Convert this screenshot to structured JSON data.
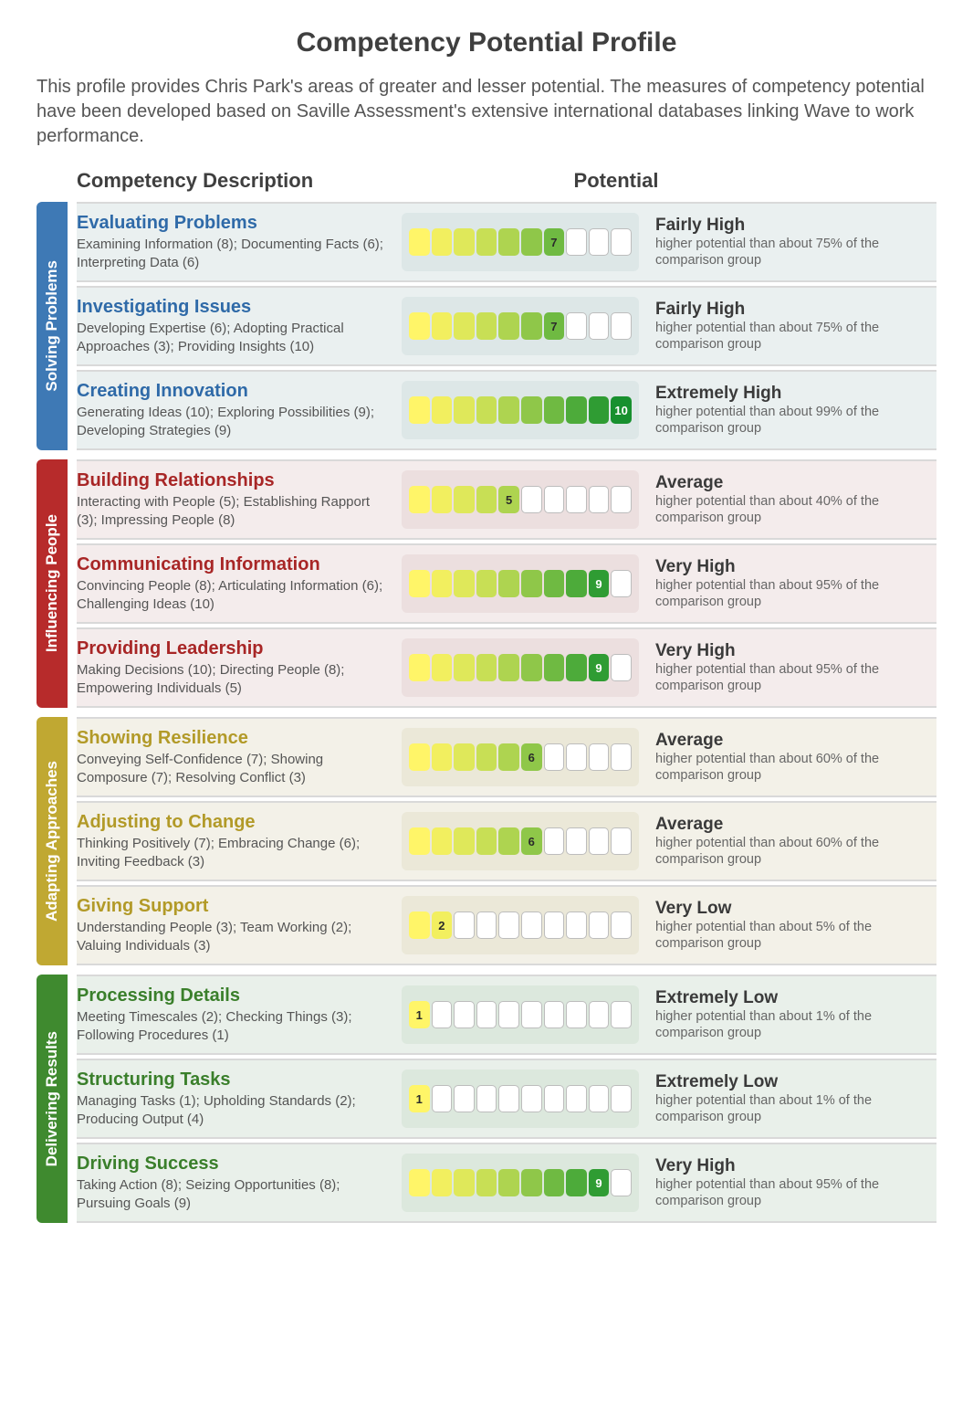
{
  "title": "Competency Potential Profile",
  "intro": "This profile provides Chris Park's areas of greater and lesser potential. The measures of competency potential have been developed based on Saville Assessment's extensive international databases linking Wave to work performance.",
  "headers": {
    "description": "Competency Description",
    "potential": "Potential"
  },
  "bar": {
    "cell_count": 10,
    "gradient": [
      "#fff568",
      "#f2ef5f",
      "#dfe85a",
      "#c8df55",
      "#aed450",
      "#8fc749",
      "#6fba42",
      "#4dab3a",
      "#2f9c33",
      "#17902e"
    ],
    "empty_fill": "#ffffff",
    "cell_border": "#bdbdbd"
  },
  "clusters": [
    {
      "name": "Solving Problems",
      "tab_color": "#3e79b5",
      "title_color": "#2f6aa8",
      "row_bg": "#eaf0f0",
      "bar_bg": "#dde7e7",
      "rows": [
        {
          "title": "Evaluating Problems",
          "sub": "Examining Information (8); Documenting Facts (6); Interpreting Data (6)",
          "score": 7,
          "pot_label": "Fairly High",
          "pot_sub": "higher potential than about 75% of the comparison group"
        },
        {
          "title": "Investigating Issues",
          "sub": "Developing Expertise (6); Adopting Practical Approaches (3); Providing Insights (10)",
          "score": 7,
          "pot_label": "Fairly High",
          "pot_sub": "higher potential than about 75% of the comparison group"
        },
        {
          "title": "Creating Innovation",
          "sub": "Generating Ideas (10); Exploring Possibilities (9); Developing Strategies (9)",
          "score": 10,
          "pot_label": "Extremely High",
          "pot_sub": "higher potential than about 99% of the comparison group"
        }
      ]
    },
    {
      "name": "Influencing People",
      "tab_color": "#b72b2b",
      "title_color": "#a82626",
      "row_bg": "#f4ecec",
      "bar_bg": "#ecdfdf",
      "rows": [
        {
          "title": "Building Relationships",
          "sub": "Interacting with People (5); Establishing Rapport (3); Impressing People (8)",
          "score": 5,
          "pot_label": "Average",
          "pot_sub": "higher potential than about 40% of the comparison group"
        },
        {
          "title": "Communicating Information",
          "sub": "Convincing People (8); Articulating Information (6); Challenging Ideas (10)",
          "score": 9,
          "pot_label": "Very High",
          "pot_sub": "higher potential than about 95% of the comparison group"
        },
        {
          "title": "Providing Leadership",
          "sub": "Making Decisions (10); Directing People (8); Empowering Individuals (5)",
          "score": 9,
          "pot_label": "Very High",
          "pot_sub": "higher potential than about 95% of the comparison group"
        }
      ]
    },
    {
      "name": "Adapting Approaches",
      "tab_color": "#c0a832",
      "title_color": "#b29a28",
      "row_bg": "#f3f1e8",
      "bar_bg": "#ebe8d8",
      "rows": [
        {
          "title": "Showing Resilience",
          "sub": "Conveying Self-Confidence (7); Showing Composure (7); Resolving Conflict (3)",
          "score": 6,
          "pot_label": "Average",
          "pot_sub": "higher potential than about 60% of the comparison group"
        },
        {
          "title": "Adjusting to Change",
          "sub": "Thinking Positively (7); Embracing Change (6); Inviting Feedback (3)",
          "score": 6,
          "pot_label": "Average",
          "pot_sub": "higher potential than about 60% of the comparison group"
        },
        {
          "title": "Giving Support",
          "sub": "Understanding People (3); Team Working (2); Valuing Individuals (3)",
          "score": 2,
          "pot_label": "Very Low",
          "pot_sub": "higher potential than about 5% of the comparison group"
        }
      ]
    },
    {
      "name": "Delivering Results",
      "tab_color": "#3f8a2f",
      "title_color": "#3a7f2b",
      "row_bg": "#e9f0ea",
      "bar_bg": "#dce8dd",
      "rows": [
        {
          "title": "Processing Details",
          "sub": "Meeting Timescales (2); Checking Things (3); Following Procedures (1)",
          "score": 1,
          "pot_label": "Extremely Low",
          "pot_sub": "higher potential than about 1% of the comparison group"
        },
        {
          "title": "Structuring Tasks",
          "sub": "Managing Tasks (1); Upholding Standards (2); Producing Output (4)",
          "score": 1,
          "pot_label": "Extremely Low",
          "pot_sub": "higher potential than about 1% of the comparison group"
        },
        {
          "title": "Driving Success",
          "sub": "Taking Action (8); Seizing Opportunities (8); Pursuing Goals (9)",
          "score": 9,
          "pot_label": "Very High",
          "pot_sub": "higher potential than about 95% of the comparison group"
        }
      ]
    }
  ]
}
